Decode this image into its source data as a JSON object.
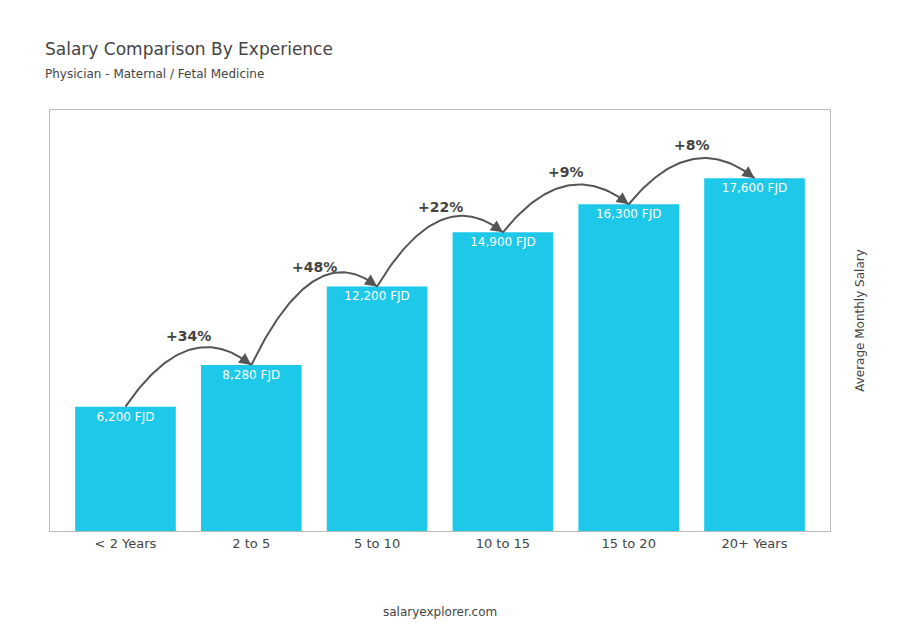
{
  "chart_data": {
    "type": "bar",
    "title": "Salary Comparison By Experience",
    "subtitle": "Physician - Maternal / Fetal Medicine",
    "categories": [
      "< 2 Years",
      "2 to 5",
      "5 to 10",
      "10 to 15",
      "15 to 20",
      "20+ Years"
    ],
    "values": [
      6200,
      8280,
      12200,
      14900,
      16300,
      17600
    ],
    "value_labels": [
      "6,200 FJD",
      "8,280 FJD",
      "12,200 FJD",
      "14,900 FJD",
      "16,300 FJD",
      "17,600 FJD"
    ],
    "data_labels": true,
    "color": "#1ec8e8",
    "ylabel": "Average Monthly Salary",
    "ylim": [
      0,
      21000
    ],
    "tick_labels": "x",
    "grid": false,
    "annotations": [
      "+34%",
      "+48%",
      "+22%",
      "+9%",
      "+8%"
    ],
    "source": "salaryexplorer.com"
  }
}
